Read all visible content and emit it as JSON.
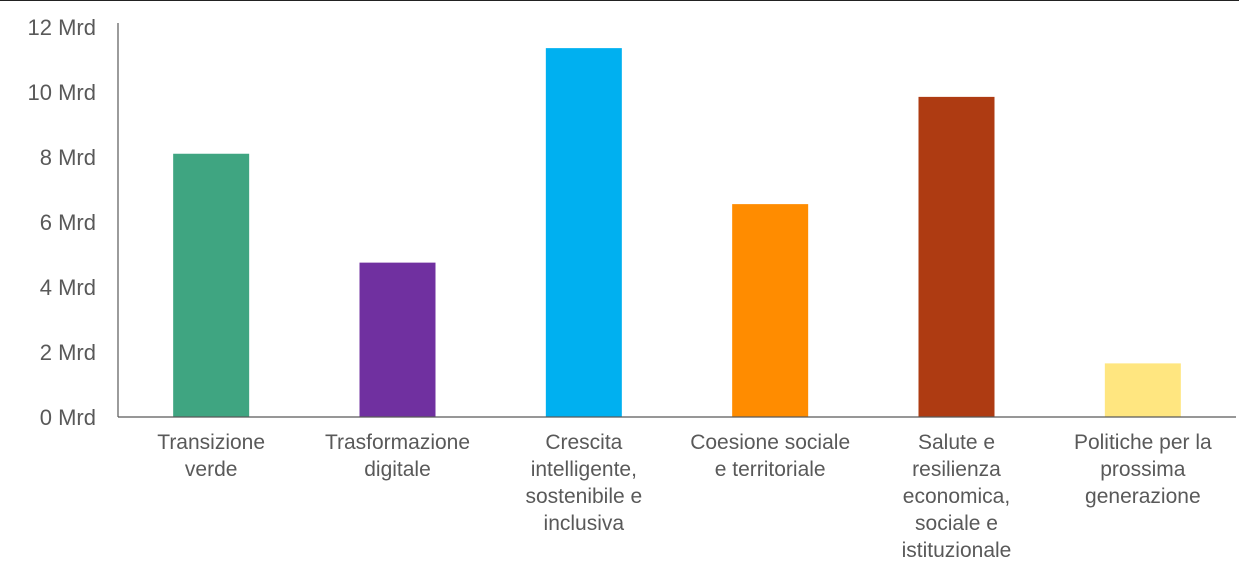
{
  "chart_data": {
    "type": "bar",
    "categories": [
      "Transizione verde",
      "Trasformazione digitale",
      "Crescita intelligente, sostenibile e inclusiva",
      "Coesione sociale e territoriale",
      "Salute e resilienza economica, sociale e istituzionale",
      "Politiche per la prossima generazione"
    ],
    "category_lines": [
      [
        "Transizione",
        "verde"
      ],
      [
        "Trasformazione",
        "digitale"
      ],
      [
        "Crescita",
        "intelligente,",
        "sostenibile e",
        "inclusiva"
      ],
      [
        "Coesione sociale",
        "e territoriale"
      ],
      [
        "Salute e",
        "resilienza",
        "economica,",
        "sociale e",
        "istituzionale"
      ],
      [
        "Politiche per la",
        "prossima",
        "generazione"
      ]
    ],
    "values": [
      8.1,
      4.75,
      11.35,
      6.55,
      9.85,
      1.65
    ],
    "colors": [
      "#3fa581",
      "#7030a0",
      "#00b0f0",
      "#ff8c00",
      "#ae3b12",
      "#ffe680"
    ],
    "ylim": [
      0,
      12
    ],
    "yticks": [
      {
        "value": 0,
        "label": "0 Mrd"
      },
      {
        "value": 2,
        "label": "2 Mrd"
      },
      {
        "value": 4,
        "label": "4 Mrd"
      },
      {
        "value": 6,
        "label": "6 Mrd"
      },
      {
        "value": 8,
        "label": "8 Mrd"
      },
      {
        "value": 10,
        "label": "10 Mrd"
      },
      {
        "value": 12,
        "label": "12 Mrd"
      }
    ],
    "title": "",
    "xlabel": "",
    "ylabel": "",
    "grid": false,
    "legend": "none"
  },
  "colors": {
    "axis": "#595959",
    "text": "#595959"
  }
}
